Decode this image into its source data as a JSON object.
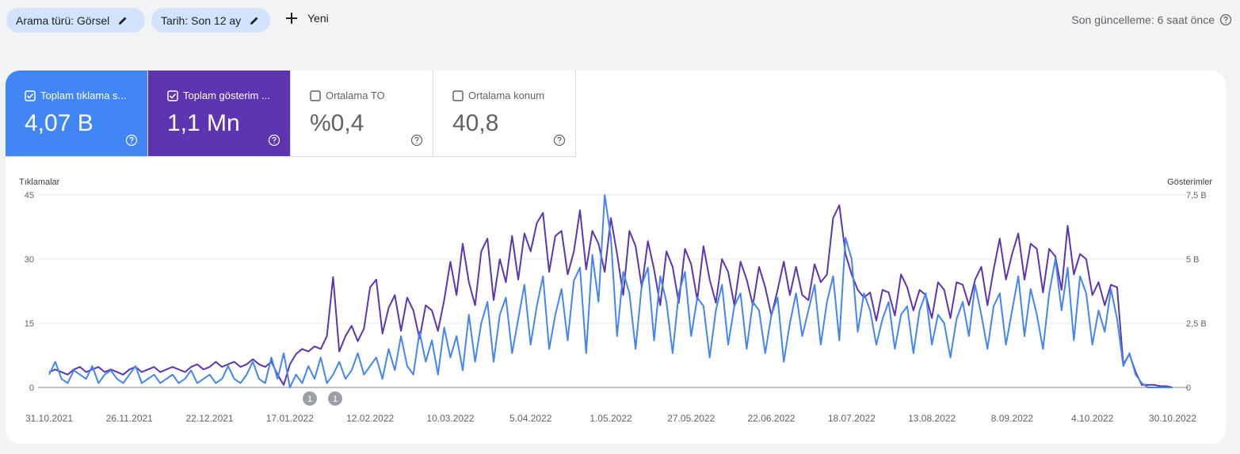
{
  "header": {
    "filters": [
      "Arama türü: Görsel",
      "Tarih: Son 12 ay"
    ],
    "new_button": "Yeni",
    "last_update": "Son güncelleme: 6 saat önce"
  },
  "metrics": [
    {
      "label": "Toplam tıklama s...",
      "value": "4,07 B",
      "checked": true,
      "color": "#4285f4"
    },
    {
      "label": "Toplam gösterim ...",
      "value": "1,1 Mn",
      "checked": true,
      "color": "#5e35b1"
    },
    {
      "label": "Ortalama TO",
      "value": "%0,4",
      "checked": false
    },
    {
      "label": "Ortalama konum",
      "value": "40,8",
      "checked": false
    }
  ],
  "chart_data": {
    "type": "line",
    "y_label": "Tıklamalar",
    "y2_label": "Gösterimler",
    "grid": true,
    "categories": [
      "31.10.2021",
      null,
      null,
      null,
      null,
      null,
      null,
      null,
      null,
      null,
      null,
      null,
      null,
      "26.11.2021",
      null,
      null,
      null,
      null,
      null,
      null,
      null,
      null,
      null,
      null,
      null,
      null,
      "22.12.2021",
      null,
      null,
      null,
      null,
      null,
      null,
      null,
      null,
      null,
      null,
      null,
      null,
      "17.01.2022",
      null,
      null,
      null,
      null,
      null,
      null,
      null,
      null,
      null,
      null,
      null,
      null,
      "12.02.2022",
      null,
      null,
      null,
      null,
      null,
      null,
      null,
      null,
      null,
      null,
      null,
      null,
      "10.03.2022",
      null,
      null,
      null,
      null,
      null,
      null,
      null,
      null,
      null,
      null,
      null,
      null,
      "5.04.2022",
      null,
      null,
      null,
      null,
      null,
      null,
      null,
      null,
      null,
      null,
      null,
      null,
      "1.05.2022",
      null,
      null,
      null,
      null,
      null,
      null,
      null,
      null,
      null,
      null,
      null,
      null,
      "27.05.2022",
      null,
      null,
      null,
      null,
      null,
      null,
      null,
      null,
      null,
      null,
      null,
      null,
      "22.06.2022",
      null,
      null,
      null,
      null,
      null,
      null,
      null,
      null,
      null,
      null,
      null,
      null,
      "18.07.2022",
      null,
      null,
      null,
      null,
      null,
      null,
      null,
      null,
      null,
      null,
      null,
      null,
      "13.08.2022",
      null,
      null,
      null,
      null,
      null,
      null,
      null,
      null,
      null,
      null,
      null,
      null,
      "8.09.2022",
      null,
      null,
      null,
      null,
      null,
      null,
      null,
      null,
      null,
      null,
      null,
      null,
      "4.10.2022",
      null,
      null,
      null,
      null,
      null,
      null,
      null,
      null,
      null,
      null,
      null,
      null,
      "30.10.2022"
    ],
    "ylim": [
      0,
      45
    ],
    "yticks": [
      0,
      15,
      30,
      45
    ],
    "y2lim": [
      0,
      7.5
    ],
    "y2ticks": [
      0,
      {
        "value": 2.5,
        "label": "2,5 B"
      },
      {
        "value": 5,
        "label": "5 B"
      },
      {
        "value": 7.5,
        "label": "7,5 B"
      }
    ],
    "series": [
      {
        "name": "Tıklamalar",
        "color": "#4285f4",
        "values": [
          3,
          6,
          2,
          1,
          4,
          3,
          2,
          5,
          1,
          3,
          4,
          2,
          1,
          3,
          5,
          1,
          2,
          3,
          1,
          2,
          3,
          1,
          2,
          4,
          1,
          2,
          3,
          1,
          2,
          5,
          2,
          1,
          3,
          6,
          2,
          1,
          7,
          2,
          8,
          0,
          3,
          1,
          5,
          2,
          7,
          1,
          3,
          6,
          2,
          4,
          8,
          3,
          5,
          7,
          2,
          9,
          4,
          12,
          5,
          3,
          13,
          6,
          11,
          3,
          14,
          7,
          12,
          4,
          17,
          6,
          15,
          20,
          6,
          17,
          21,
          8,
          16,
          24,
          10,
          19,
          26,
          9,
          17,
          23,
          11,
          25,
          28,
          8,
          31,
          20,
          45,
          35,
          12,
          27,
          22,
          9,
          24,
          28,
          11,
          26,
          20,
          8,
          22,
          27,
          12,
          21,
          19,
          7,
          18,
          24,
          10,
          19,
          22,
          9,
          20,
          18,
          8,
          17,
          21,
          6,
          15,
          22,
          12,
          18,
          24,
          10,
          20,
          26,
          11,
          35,
          30,
          13,
          22,
          18,
          10,
          16,
          20,
          9,
          17,
          19,
          8,
          18,
          22,
          10,
          17,
          15,
          7,
          16,
          20,
          12,
          24,
          17,
          9,
          19,
          22,
          10,
          18,
          26,
          12,
          23,
          17,
          9,
          22,
          30,
          18,
          28,
          11,
          26,
          22,
          10,
          18,
          13,
          23,
          16,
          5,
          8,
          3,
          1,
          0,
          0,
          0,
          0,
          0
        ]
      },
      {
        "name": "Gösterimler",
        "color": "#5e35b1",
        "axis": "y2",
        "values": [
          0.6,
          0.7,
          0.6,
          0.5,
          0.7,
          0.8,
          0.6,
          0.7,
          0.8,
          0.6,
          0.7,
          0.6,
          0.5,
          0.7,
          0.8,
          0.6,
          0.7,
          0.8,
          0.6,
          0.7,
          0.8,
          0.7,
          0.6,
          0.8,
          0.9,
          0.7,
          0.8,
          1.0,
          0.8,
          0.9,
          1.0,
          0.8,
          0.9,
          1.1,
          0.9,
          0.8,
          1.0,
          0.5,
          0.1,
          0.9,
          1.3,
          1.5,
          1.4,
          1.6,
          1.5,
          2.0,
          4.3,
          1.4,
          2.0,
          2.4,
          1.8,
          2.3,
          3.9,
          4.2,
          2.1,
          3.1,
          3.6,
          2.2,
          3.5,
          3.0,
          1.9,
          3.2,
          3.0,
          2.2,
          3.4,
          4.9,
          3.6,
          5.6,
          4.1,
          3.2,
          5.3,
          5.8,
          3.4,
          5.0,
          4.1,
          5.9,
          4.2,
          6.0,
          5.3,
          6.4,
          6.8,
          4.5,
          5.9,
          6.1,
          4.4,
          5.3,
          6.9,
          4.6,
          6.1,
          5.6,
          4.5,
          6.6,
          5.2,
          3.6,
          6.1,
          5.5,
          3.9,
          5.7,
          4.6,
          3.2,
          5.3,
          4.7,
          3.3,
          5.4,
          4.8,
          3.4,
          5.5,
          4.2,
          3.3,
          5.0,
          4.5,
          3.2,
          4.9,
          4.2,
          3.2,
          4.7,
          3.9,
          2.8,
          3.8,
          4.9,
          3.6,
          4.7,
          3.6,
          3.4,
          4.8,
          4.1,
          4.4,
          6.6,
          7.1,
          5.2,
          4.4,
          3.8,
          3.5,
          3.7,
          2.6,
          3.8,
          3.7,
          2.8,
          4.4,
          3.9,
          3.0,
          3.8,
          3.6,
          2.7,
          4.1,
          3.8,
          2.7,
          4.1,
          4.0,
          3.2,
          4.2,
          4.7,
          3.2,
          4.6,
          5.8,
          4.2,
          5.2,
          6.0,
          4.2,
          5.6,
          5.4,
          3.7,
          5.4,
          5.1,
          3.8,
          6.3,
          4.4,
          5.2,
          5.0,
          3.6,
          4.1,
          3.2,
          4.0,
          3.9,
          0.9,
          1.3,
          0.6,
          0.1,
          0.1,
          0.1,
          0.05,
          0.05,
          0.0
        ]
      }
    ],
    "annotations": [
      "1",
      "1"
    ]
  }
}
